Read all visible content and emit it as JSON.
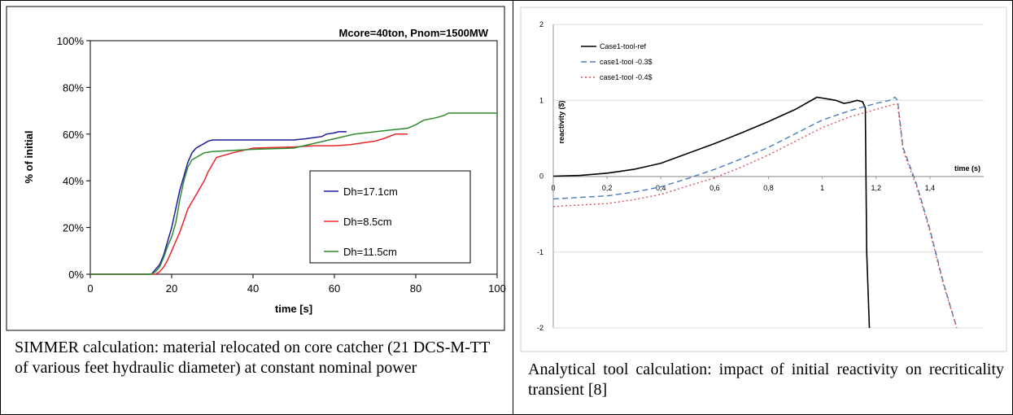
{
  "left": {
    "caption": "SIMMER calculation: material relocated on core catcher (21 DCS-M-TT of various feet hydraulic diameter) at constant nominal power",
    "chart_data": {
      "type": "line",
      "title": "Mcore=40ton, Pnom=1500MW",
      "xlabel": "time [s]",
      "ylabel": "% of initial",
      "xlim": [
        0,
        100
      ],
      "ylim": [
        0,
        100
      ],
      "x_ticks": [
        "0",
        "20",
        "40",
        "60",
        "80",
        "100"
      ],
      "y_ticks": [
        "0%",
        "20%",
        "40%",
        "60%",
        "80%",
        "100%"
      ],
      "grid": false,
      "legend_position": "lower-right",
      "series": [
        {
          "name": "Dh=17.1cm",
          "color": "#1c1c9c",
          "x": [
            0,
            15,
            16,
            17,
            18,
            19,
            20,
            21,
            22,
            23,
            24,
            25,
            26,
            27,
            28,
            29,
            30,
            35,
            40,
            45,
            50,
            53,
            55,
            57,
            58,
            60,
            61,
            63
          ],
          "y": [
            0,
            0,
            2,
            4,
            8,
            14,
            20,
            28,
            36,
            42,
            48,
            52,
            54,
            55,
            56,
            57,
            57.5,
            57.5,
            57.5,
            57.5,
            57.5,
            58,
            58.5,
            59,
            60,
            60.5,
            61,
            61
          ]
        },
        {
          "name": "Dh=8.5cm",
          "color": "#e8262a",
          "x": [
            0,
            16,
            17,
            18,
            19,
            20,
            21,
            22,
            23,
            24,
            25,
            26,
            27,
            28,
            29,
            30,
            31,
            35,
            40,
            50,
            55,
            60,
            64,
            66,
            70,
            72,
            75,
            78
          ],
          "y": [
            0,
            0,
            1,
            3,
            6,
            10,
            14,
            18,
            23,
            28,
            31,
            34,
            37,
            40,
            44,
            47,
            50,
            52,
            54,
            54.5,
            55,
            55,
            55.5,
            56,
            57,
            58,
            60,
            60
          ]
        },
        {
          "name": "Dh=11.5cm",
          "color": "#2f8a2f",
          "x": [
            0,
            15,
            16,
            17,
            18,
            19,
            20,
            21,
            22,
            23,
            24,
            25,
            26,
            27,
            28,
            30,
            35,
            40,
            50,
            60,
            65,
            70,
            75,
            78,
            80,
            82,
            85,
            87,
            88,
            100
          ],
          "y": [
            0,
            0,
            1,
            3,
            7,
            12,
            16,
            22,
            32,
            40,
            46,
            49,
            50,
            51,
            52,
            52.5,
            53,
            53.5,
            54,
            58,
            60,
            61,
            62,
            62.5,
            64,
            66,
            67,
            68,
            69,
            69
          ]
        }
      ]
    }
  },
  "right": {
    "caption": "Analytical tool calculation: impact of initial reactivity on recriticality transient [8]",
    "chart_data": {
      "type": "line",
      "title": "",
      "xlabel": "time (s)",
      "ylabel": "reactivity ($)",
      "xlim": [
        0,
        1.6
      ],
      "ylim": [
        -2,
        2
      ],
      "x_ticks": [
        "0",
        "0,2",
        "0,4",
        "0,6",
        "0,8",
        "1",
        "1,2",
        "1,4"
      ],
      "y_ticks": [
        "-2",
        "-1",
        "0",
        "1",
        "2"
      ],
      "grid": true,
      "legend_position": "top-left",
      "series": [
        {
          "name": "Case1-tool-ref",
          "color": "#000000",
          "dash": "none",
          "x": [
            0,
            0.1,
            0.2,
            0.3,
            0.4,
            0.5,
            0.6,
            0.7,
            0.8,
            0.9,
            0.98,
            1.0,
            1.05,
            1.08,
            1.1,
            1.13,
            1.15,
            1.16,
            1.165,
            1.175
          ],
          "y": [
            0,
            0.01,
            0.04,
            0.09,
            0.17,
            0.3,
            0.43,
            0.57,
            0.72,
            0.88,
            1.04,
            1.03,
            1.0,
            0.96,
            0.97,
            1.0,
            0.98,
            0.9,
            -1.0,
            -2.0
          ]
        },
        {
          "name": "case1-tool -0.3$",
          "color": "#4a7ebb",
          "dash": "7,4",
          "x": [
            0,
            0.2,
            0.3,
            0.4,
            0.5,
            0.6,
            0.7,
            0.8,
            0.9,
            1.0,
            1.1,
            1.2,
            1.25,
            1.27,
            1.28,
            1.3,
            1.35,
            1.4,
            1.45,
            1.5
          ],
          "y": [
            -0.3,
            -0.26,
            -0.21,
            -0.14,
            -0.03,
            0.09,
            0.23,
            0.38,
            0.56,
            0.74,
            0.86,
            0.96,
            1.0,
            1.04,
            1.0,
            0.38,
            -0.1,
            -0.7,
            -1.4,
            -2.0
          ]
        },
        {
          "name": "case1-tool -0.4$",
          "color": "#d9535c",
          "dash": "2,3",
          "x": [
            0,
            0.2,
            0.3,
            0.4,
            0.5,
            0.6,
            0.7,
            0.8,
            0.9,
            1.0,
            1.1,
            1.2,
            1.27,
            1.28,
            1.3,
            1.35,
            1.4,
            1.45,
            1.5
          ],
          "y": [
            -0.4,
            -0.36,
            -0.31,
            -0.24,
            -0.13,
            -0.02,
            0.12,
            0.28,
            0.46,
            0.64,
            0.78,
            0.88,
            0.95,
            0.95,
            0.34,
            -0.13,
            -0.73,
            -1.43,
            -2.0
          ]
        }
      ]
    }
  }
}
